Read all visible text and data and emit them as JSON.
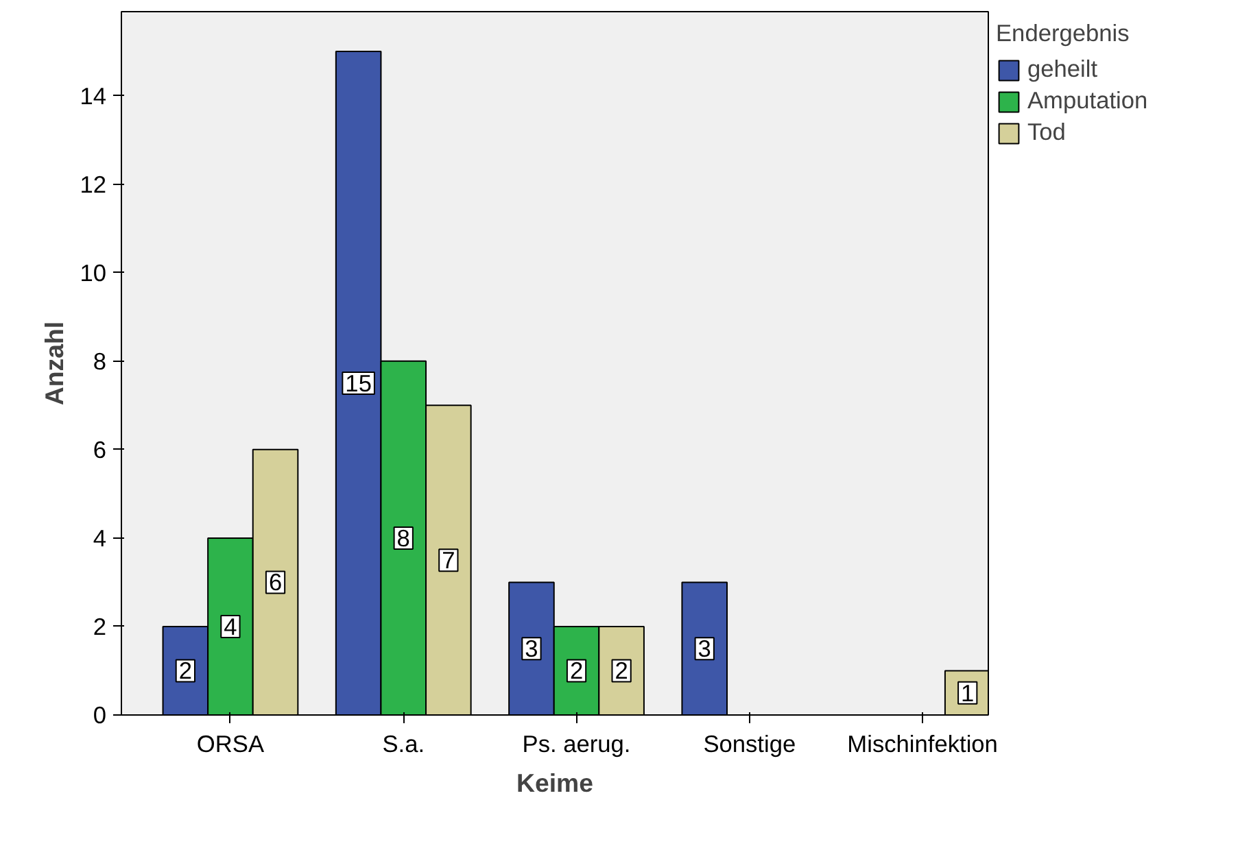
{
  "chart_data": {
    "type": "bar",
    "xlabel": "Keime",
    "ylabel": "Anzahl",
    "legend_title": "Endergebnis",
    "categories": [
      "ORSA",
      "S.a.",
      "Ps. aerug.",
      "Sonstige",
      "Mischinfektion"
    ],
    "series": [
      {
        "name": "geheilt",
        "color": "#3e57a8",
        "values": [
          2,
          15,
          3,
          3,
          0
        ],
        "value_labels": [
          "2",
          "15",
          "3",
          "3",
          null
        ]
      },
      {
        "name": "Amputation",
        "color": "#2db34b",
        "values": [
          4,
          8,
          2,
          0,
          0
        ],
        "value_labels": [
          "4",
          "8",
          "2",
          null,
          null
        ]
      },
      {
        "name": "Tod",
        "color": "#d5d09a",
        "values": [
          6,
          7,
          2,
          0,
          1
        ],
        "value_labels": [
          "6",
          "7",
          "2",
          null,
          "1"
        ]
      }
    ],
    "ylim": [
      0,
      15.9
    ],
    "yticks": [
      0,
      2,
      4,
      6,
      8,
      10,
      12,
      14
    ],
    "grid": false,
    "legend": "right"
  }
}
